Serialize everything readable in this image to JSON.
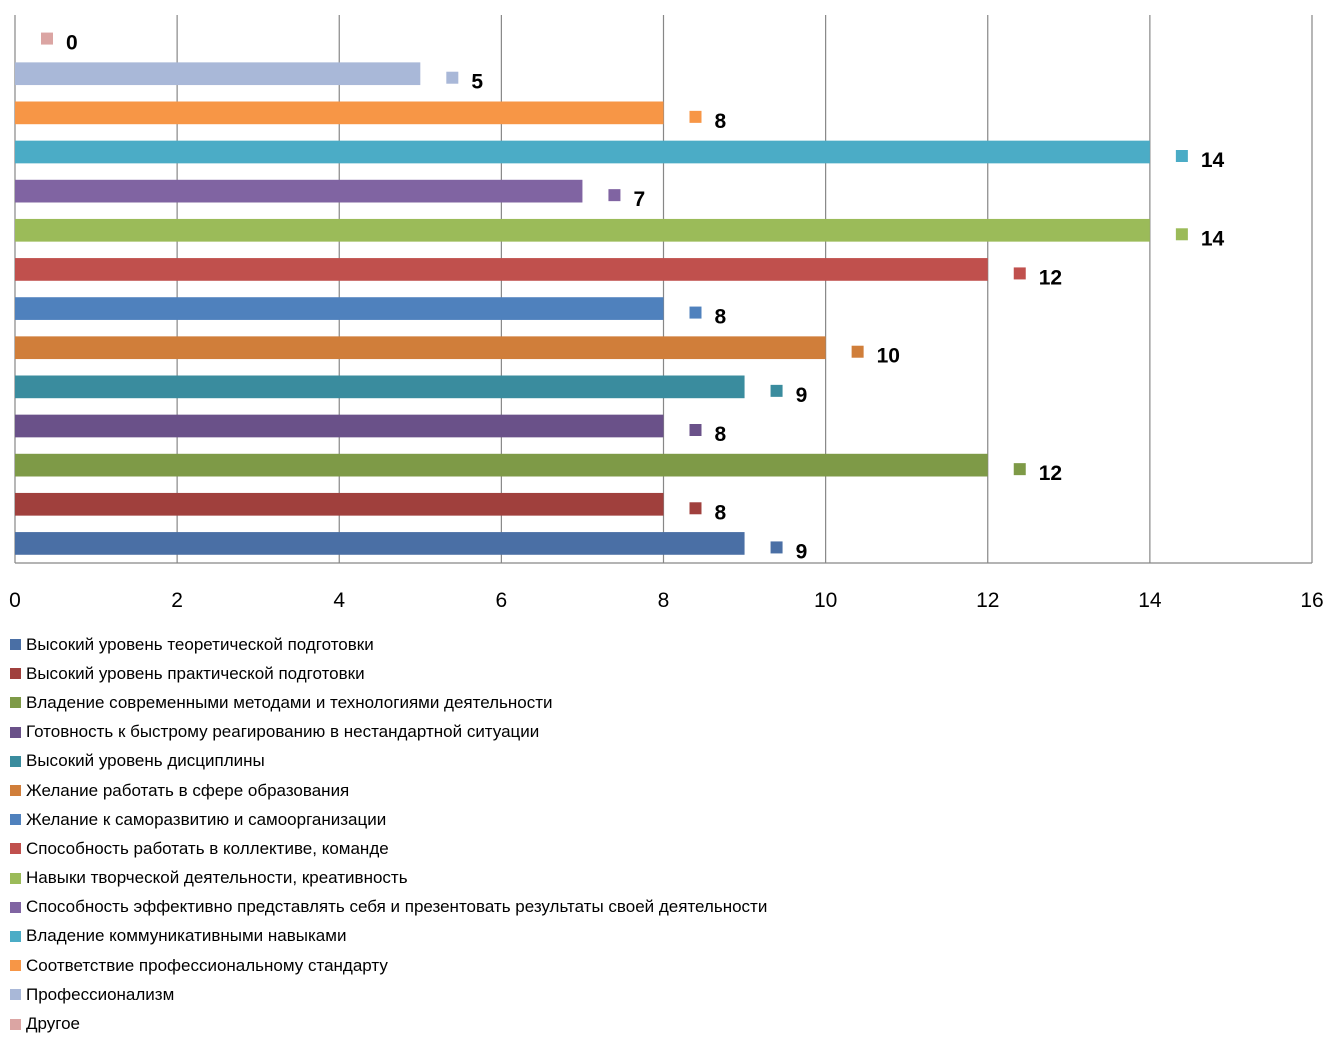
{
  "chart_data": {
    "type": "bar",
    "orientation": "horizontal",
    "title": "",
    "xlabel": "",
    "ylabel": "",
    "xlim": [
      0,
      16
    ],
    "x_ticks": [
      "0",
      "2",
      "4",
      "6",
      "8",
      "10",
      "12",
      "14",
      "16"
    ],
    "grid": "vertical",
    "legend_position": "bottom",
    "series": [
      {
        "name": "Высокий уровень теоретической подготовки",
        "value": 9,
        "color": "#4A6FA5"
      },
      {
        "name": "Высокий уровень практической подготовки",
        "value": 8,
        "color": "#A0403D"
      },
      {
        "name": "Владение современными методами и технологиями деятельности",
        "value": 12,
        "color": "#7E9A47"
      },
      {
        "name": "Готовность к быстрому реагированию в нестандартной ситуации",
        "value": 8,
        "color": "#6A5189"
      },
      {
        "name": "Высокий уровень дисциплины",
        "value": 9,
        "color": "#3A8C9E"
      },
      {
        "name": "Желание работать в сфере образования",
        "value": 10,
        "color": "#D07E3A"
      },
      {
        "name": "Желание к саморазвитию и самоорганизации",
        "value": 8,
        "color": "#4F81BD"
      },
      {
        "name": "Способность работать в коллективе, команде",
        "value": 12,
        "color": "#C0504D"
      },
      {
        "name": "Навыки творческой деятельности, креативность",
        "value": 14,
        "color": "#9BBB59"
      },
      {
        "name": "Способность эффективно представлять себя и презентовать результаты своей деятельности",
        "value": 7,
        "color": "#8064A2"
      },
      {
        "name": "Владение коммуникативными навыками",
        "value": 14,
        "color": "#4BACC6"
      },
      {
        "name": "Соответствие профессиональному стандарту",
        "value": 8,
        "color": "#F79646"
      },
      {
        "name": "Профессионализм",
        "value": 5,
        "color": "#A9B8D8"
      },
      {
        "name": "Другое",
        "value": 0,
        "color": "#DBA5A3"
      }
    ]
  }
}
